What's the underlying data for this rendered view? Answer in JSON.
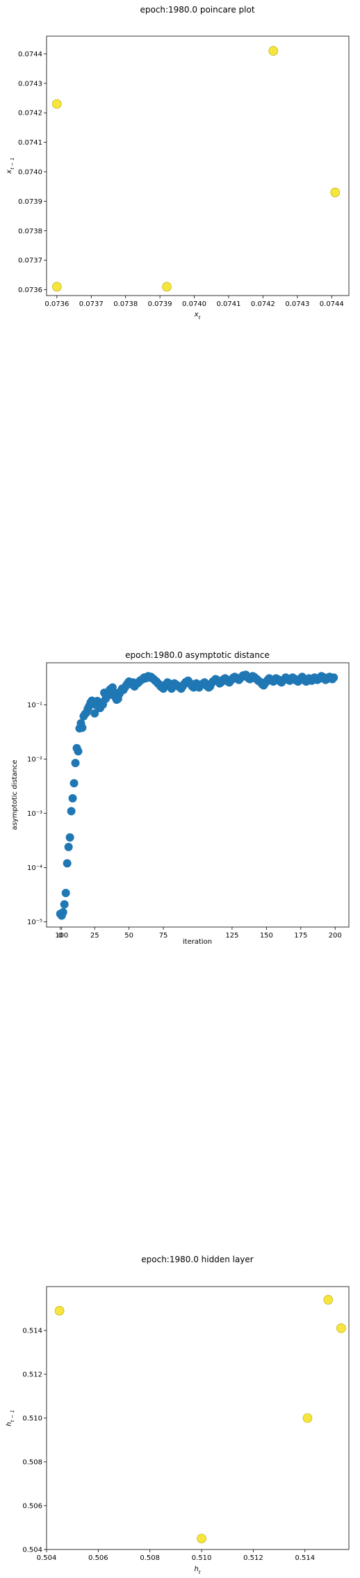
{
  "chart_data": [
    {
      "type": "scatter",
      "title": "epoch:1980.0 poincare plot",
      "xlabel": "x_t",
      "ylabel": "x_{t-1}",
      "xlim": [
        0.07357,
        0.07445
      ],
      "ylim": [
        0.07358,
        0.07446
      ],
      "xticks": [
        "0.0736",
        "0.0737",
        "0.0738",
        "0.0739",
        "0.0740",
        "0.0741",
        "0.0742",
        "0.0743",
        "0.0744"
      ],
      "yticks": [
        "0.0736",
        "0.0737",
        "0.0738",
        "0.0739",
        "0.0740",
        "0.0741",
        "0.0742",
        "0.0743",
        "0.0744"
      ],
      "point_color": "#f5e53c",
      "x": [
        0.0736,
        0.0736,
        0.07392,
        0.07423,
        0.07441
      ],
      "y": [
        0.07423,
        0.07361,
        0.07361,
        0.07441,
        0.07393
      ]
    },
    {
      "type": "scatter",
      "title": "epoch:1980.0 asymptotic distance",
      "xlabel": "iteration",
      "ylabel": "asymptotic distance",
      "yscale": "log",
      "xlim": [
        -10,
        210
      ],
      "ylim": [
        8e-06,
        0.6
      ],
      "xticks": [
        "0",
        "25",
        "50",
        "75",
        "100",
        "125",
        "150",
        "175",
        "200"
      ],
      "yticks": [
        "10⁻⁵",
        "10⁻⁴",
        "10⁻³",
        "10⁻²",
        "10⁻¹"
      ],
      "point_color": "#1f77b4",
      "x": [
        0,
        1,
        2,
        3,
        4,
        5,
        6,
        7,
        8,
        9,
        10,
        11,
        12,
        13,
        14,
        15,
        16,
        17,
        18,
        19,
        20,
        21,
        22,
        23,
        24,
        25,
        26,
        27,
        28,
        29,
        30,
        31,
        32,
        33,
        34,
        35,
        36,
        37,
        38,
        39,
        40,
        41,
        42,
        43,
        44,
        45,
        46,
        47,
        48,
        49,
        50,
        51,
        52,
        53,
        54,
        55,
        56,
        57,
        58,
        59,
        60,
        61,
        62,
        63,
        64,
        65,
        66,
        67,
        68,
        69,
        70,
        71,
        72,
        73,
        74,
        75,
        76,
        77,
        78,
        79,
        80,
        81,
        82,
        83,
        84,
        85,
        86,
        87,
        88,
        89,
        90,
        91,
        92,
        93,
        94,
        95,
        96,
        97,
        98,
        99,
        100,
        101,
        102,
        103,
        104,
        105,
        106,
        107,
        108,
        109,
        110,
        111,
        112,
        113,
        114,
        115,
        116,
        117,
        118,
        119,
        120,
        121,
        122,
        123,
        124,
        125,
        126,
        127,
        128,
        129,
        130,
        131,
        132,
        133,
        134,
        135,
        136,
        137,
        138,
        139,
        140,
        141,
        142,
        143,
        144,
        145,
        146,
        147,
        148,
        149,
        150,
        151,
        152,
        153,
        154,
        155,
        156,
        157,
        158,
        159,
        160,
        161,
        162,
        163,
        164,
        165,
        166,
        167,
        168,
        169,
        170,
        171,
        172,
        173,
        174,
        175,
        176,
        177,
        178,
        179,
        180,
        181,
        182,
        183,
        184,
        185,
        186,
        187,
        188,
        189,
        190,
        191,
        192,
        193,
        194,
        195,
        196,
        197,
        198,
        199
      ],
      "y": [
        1.4e-05,
        1.3e-05,
        1.5e-05,
        2.1e-05,
        3.4e-05,
        0.00012,
        0.00024,
        0.00036,
        0.0011,
        0.0019,
        0.0036,
        0.0085,
        0.016,
        0.014,
        0.037,
        0.046,
        0.038,
        0.062,
        0.068,
        0.072,
        0.085,
        0.095,
        0.11,
        0.12,
        0.105,
        0.07,
        0.1,
        0.118,
        0.096,
        0.088,
        0.11,
        0.102,
        0.168,
        0.13,
        0.146,
        0.15,
        0.19,
        0.2,
        0.21,
        0.17,
        0.14,
        0.125,
        0.13,
        0.16,
        0.18,
        0.2,
        0.19,
        0.21,
        0.23,
        0.25,
        0.27,
        0.25,
        0.24,
        0.26,
        0.22,
        0.24,
        0.25,
        0.26,
        0.28,
        0.29,
        0.3,
        0.32,
        0.31,
        0.33,
        0.34,
        0.32,
        0.33,
        0.31,
        0.3,
        0.28,
        0.27,
        0.25,
        0.24,
        0.22,
        0.21,
        0.2,
        0.23,
        0.24,
        0.26,
        0.25,
        0.22,
        0.2,
        0.23,
        0.25,
        0.24,
        0.23,
        0.22,
        0.21,
        0.2,
        0.22,
        0.24,
        0.26,
        0.27,
        0.28,
        0.26,
        0.24,
        0.22,
        0.21,
        0.23,
        0.25,
        0.22,
        0.21,
        0.23,
        0.24,
        0.25,
        0.26,
        0.24,
        0.22,
        0.21,
        0.22,
        0.25,
        0.27,
        0.28,
        0.3,
        0.29,
        0.27,
        0.25,
        0.26,
        0.28,
        0.3,
        0.31,
        0.29,
        0.27,
        0.26,
        0.28,
        0.3,
        0.32,
        0.33,
        0.31,
        0.3,
        0.29,
        0.31,
        0.33,
        0.35,
        0.34,
        0.36,
        0.33,
        0.31,
        0.3,
        0.32,
        0.34,
        0.33,
        0.31,
        0.3,
        0.28,
        0.27,
        0.26,
        0.24,
        0.23,
        0.25,
        0.27,
        0.29,
        0.31,
        0.3,
        0.28,
        0.27,
        0.29,
        0.31,
        0.3,
        0.29,
        0.27,
        0.26,
        0.28,
        0.3,
        0.32,
        0.31,
        0.29,
        0.28,
        0.3,
        0.32,
        0.31,
        0.29,
        0.28,
        0.27,
        0.29,
        0.31,
        0.33,
        0.3,
        0.28,
        0.27,
        0.29,
        0.31,
        0.3,
        0.28,
        0.3,
        0.32,
        0.31,
        0.29,
        0.3,
        0.32,
        0.34,
        0.33,
        0.31,
        0.29,
        0.3,
        0.32,
        0.33,
        0.31,
        0.3,
        0.32
      ]
    },
    {
      "type": "scatter",
      "title": "epoch:1980.0 hidden layer",
      "xlabel": "h_t",
      "ylabel": "h_{t-1}",
      "xlim": [
        0.504,
        0.5157
      ],
      "ylim": [
        0.504,
        0.516
      ],
      "xticks": [
        "0.504",
        "0.506",
        "0.508",
        "0.510",
        "0.512",
        "0.514"
      ],
      "yticks": [
        "0.504",
        "0.506",
        "0.508",
        "0.510",
        "0.512",
        "0.514"
      ],
      "point_color": "#f5e53c",
      "x": [
        0.5045,
        0.51,
        0.5141,
        0.5149,
        0.5154
      ],
      "y": [
        0.5149,
        0.5045,
        0.51,
        0.5154,
        0.5141
      ]
    }
  ]
}
